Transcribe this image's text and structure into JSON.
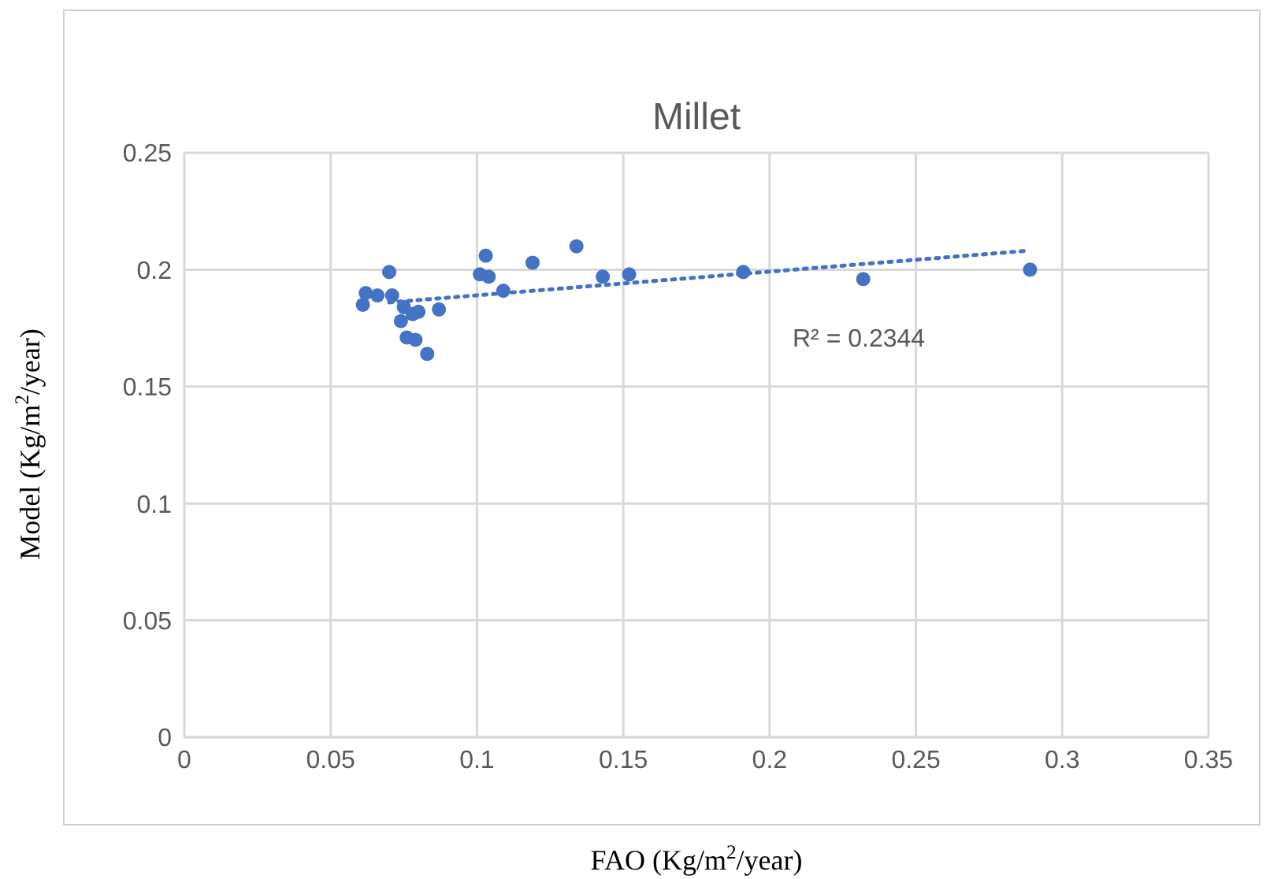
{
  "chart_data": {
    "type": "scatter",
    "title": "Millet",
    "xlabel": "FAO (Kg/m$^{2}$/year)",
    "ylabel": "Model (Kg/m$^{2}$/year)",
    "x": [
      0.061,
      0.062,
      0.07,
      0.066,
      0.071,
      0.074,
      0.075,
      0.078,
      0.076,
      0.079,
      0.08,
      0.083,
      0.087,
      0.101,
      0.103,
      0.104,
      0.109,
      0.119,
      0.134,
      0.143,
      0.152,
      0.191,
      0.232,
      0.289
    ],
    "series": [
      {
        "color": "#4472c4",
        "values": [
          0.185,
          0.19,
          0.199,
          0.189,
          0.189,
          0.178,
          0.184,
          0.181,
          0.171,
          0.17,
          0.182,
          0.164,
          0.183,
          0.198,
          0.206,
          0.197,
          0.191,
          0.203,
          0.21,
          0.197,
          0.198,
          0.199,
          0.196,
          0.2
        ]
      },
      {
        "type": "line",
        "color": "#4472c4",
        "line_style": "dotted",
        "marker": "none",
        "x": [
          0.07,
          0.287
        ],
        "values": [
          0.186,
          0.208
        ]
      }
    ],
    "annotations": [
      "R² = 0.2344"
    ],
    "xlim": [
      0,
      0.35
    ],
    "xticks": [
      0,
      0.05,
      0.1,
      0.15,
      0.2,
      0.25,
      0.3,
      0.35
    ],
    "ylim": [
      0,
      0.25
    ],
    "yticks": [
      0,
      0.05,
      0.1,
      0.15,
      0.2,
      0.25
    ],
    "grid": true,
    "marker": "circle"
  }
}
